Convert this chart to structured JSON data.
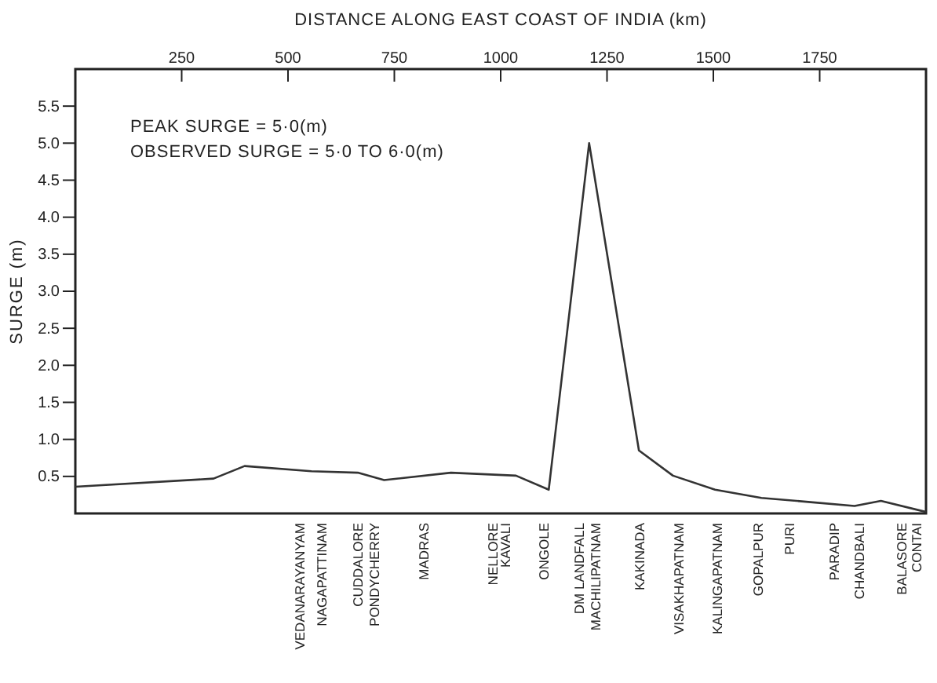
{
  "chart_data": {
    "type": "line",
    "xlabel": "DISTANCE  ALONG  EAST COAST OF INDIA (km)",
    "ylabel": "SURGE (m)",
    "x": [
      0,
      325,
      398,
      555,
      664,
      726,
      883,
      1036,
      1113,
      1208,
      1325,
      1405,
      1504,
      1613,
      1734,
      1832,
      1894,
      2000
    ],
    "series": [
      {
        "color": "#333333",
        "values": [
          0.36,
          0.47,
          0.64,
          0.57,
          0.55,
          0.45,
          0.55,
          0.51,
          0.32,
          5.0,
          0.85,
          0.51,
          0.32,
          0.21,
          0.15,
          0.1,
          0.17,
          0.02
        ]
      }
    ],
    "xlim": [
      0,
      2000
    ],
    "xticks": [
      250,
      500,
      750,
      1000,
      1250,
      1500,
      1750
    ],
    "ylim": [
      0,
      6
    ],
    "yticks": [
      {
        "value": 0.5,
        "label": "0.5"
      },
      {
        "value": 1,
        "label": "1.0"
      },
      {
        "value": 1.5,
        "label": "1.5"
      },
      {
        "value": 2,
        "label": "2.0"
      },
      {
        "value": 2.5,
        "label": "2.5"
      },
      {
        "value": 3,
        "label": "3.0"
      },
      {
        "value": 3.5,
        "label": "3.5"
      },
      {
        "value": 4,
        "label": "4.0"
      },
      {
        "value": 4.5,
        "label": "4.5"
      },
      {
        "value": 5,
        "label": "5.0"
      },
      {
        "value": 5.5,
        "label": "5.5"
      }
    ],
    "annotations": [
      "PEAK  SURGE = 5·0(m)",
      "OBSERVED  SURGE = 5·0 TO 6·0(m)",
      "VEDANARAYANYAM",
      "NAGAPATTINAM",
      "CUDDALORE",
      "PONDYCHERRY",
      "MADRAS",
      "NELLORE",
      "KAVALI",
      "ONGOLE",
      "DM  LANDFALL",
      "MACHILIPATNAM",
      "KAKINADA",
      "VISAKHAPATNAM",
      "KALINGAPATNAM",
      "GOPALPUR",
      "PURI",
      "PARADIP",
      "CHANDBALI",
      "BALASORE",
      "CONTAI"
    ],
    "marker": "none",
    "line_style": "solid",
    "grid": false
  }
}
